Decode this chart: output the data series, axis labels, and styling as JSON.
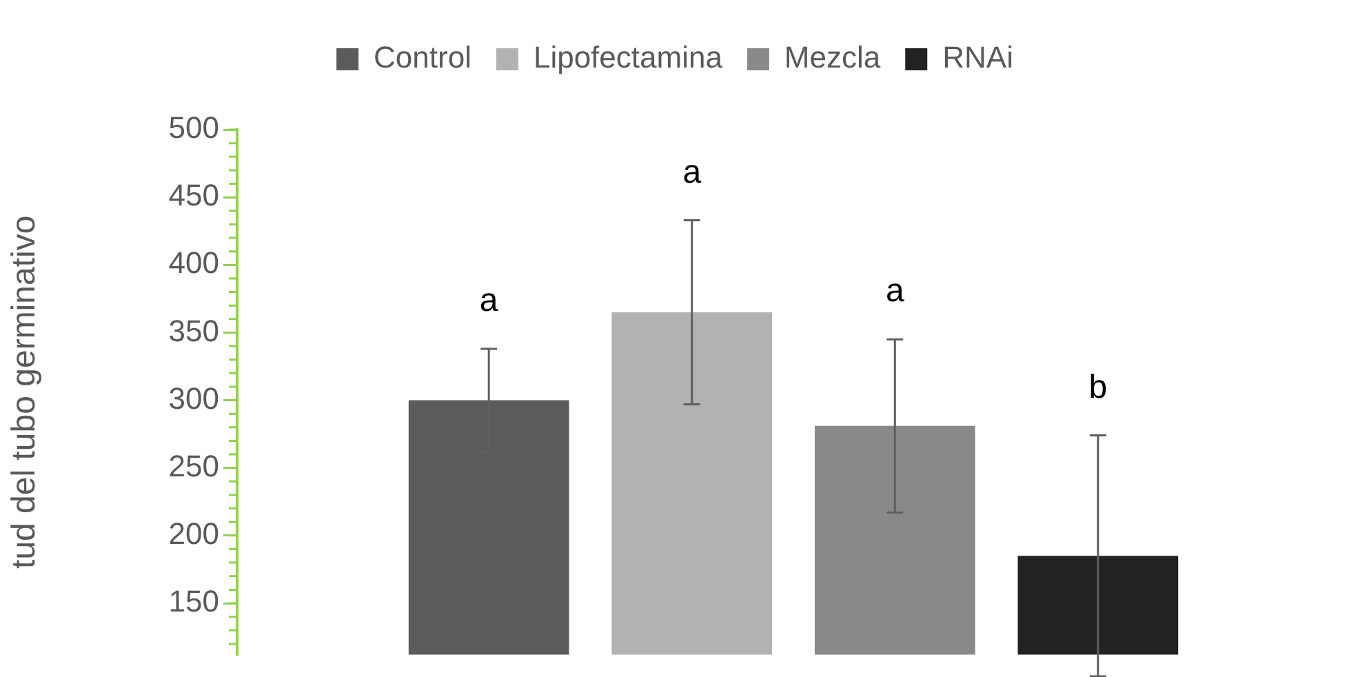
{
  "chart_data": {
    "type": "bar",
    "ylabel": "tud del tubo germinativo",
    "categories": [
      null
    ],
    "series": [
      {
        "name": "Control",
        "color": "#5b5b5b",
        "values": [
          300
        ],
        "errors": [
          38
        ]
      },
      {
        "name": "Lipofectamina",
        "color": "#b2b2b2",
        "values": [
          365
        ],
        "errors": [
          68
        ]
      },
      {
        "name": "Mezcla",
        "color": "#898989",
        "values": [
          281
        ],
        "errors": [
          64
        ]
      },
      {
        "name": "RNAi",
        "color": "#222222",
        "values": [
          185
        ],
        "errors": [
          89
        ]
      }
    ],
    "annotations": [
      "a",
      "a",
      "a",
      "b"
    ],
    "ylim": [
      112,
      500
    ],
    "yticks": [
      150,
      200,
      250,
      300,
      350,
      400,
      450,
      500
    ],
    "legend": "top"
  }
}
